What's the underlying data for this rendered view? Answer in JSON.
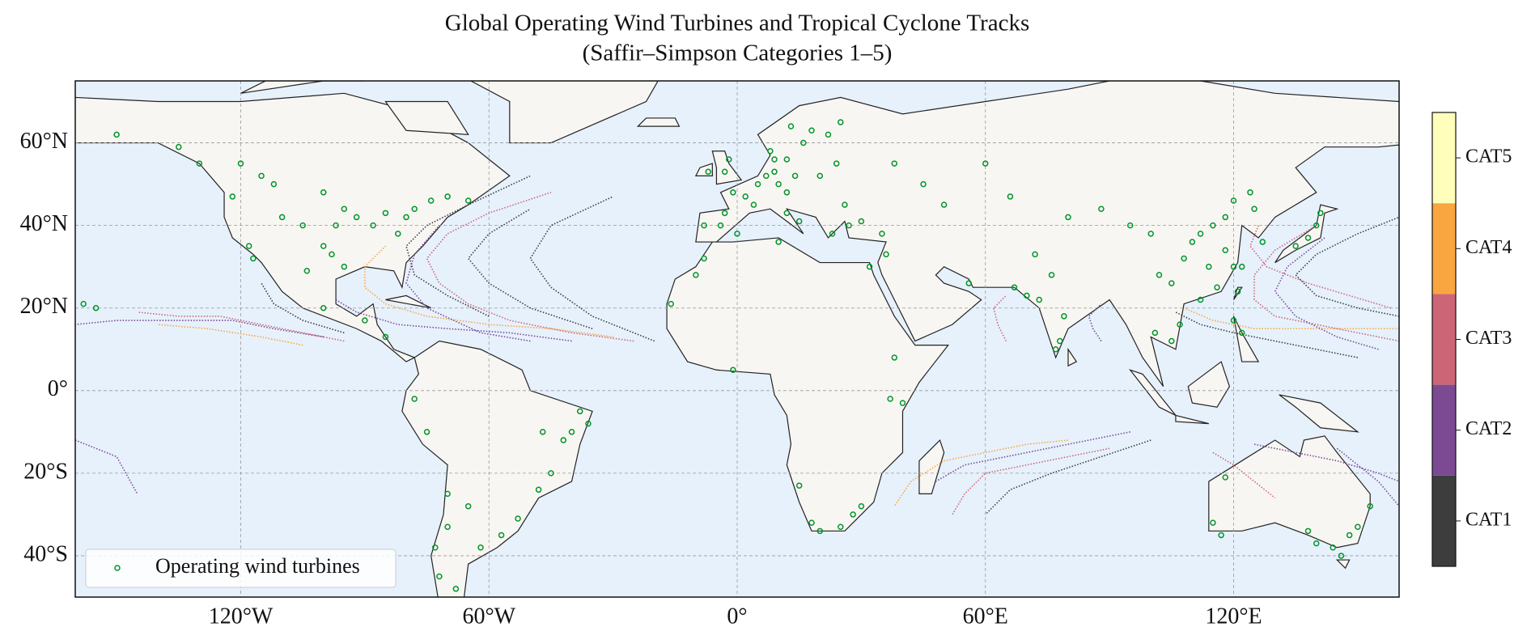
{
  "chart_data": {
    "type": "map",
    "title": "Global Operating Wind Turbines and Tropical Cyclone Tracks",
    "subtitle": "(Saffir–Simpson Categories 1–5)",
    "xlim": [
      -160,
      160
    ],
    "ylim": [
      -50,
      75
    ],
    "xticks": [
      {
        "value": -120,
        "label": "120°W"
      },
      {
        "value": -60,
        "label": "60°W"
      },
      {
        "value": 0,
        "label": "0°"
      },
      {
        "value": 60,
        "label": "60°E"
      },
      {
        "value": 120,
        "label": "120°E"
      }
    ],
    "yticks": [
      {
        "value": -40,
        "label": "40°S"
      },
      {
        "value": -20,
        "label": "20°S"
      },
      {
        "value": 0,
        "label": "0°"
      },
      {
        "value": 20,
        "label": "20°N"
      },
      {
        "value": 40,
        "label": "40°N"
      },
      {
        "value": 60,
        "label": "60°N"
      }
    ],
    "grid": true,
    "legend": "lower left",
    "colorbar": {
      "categories": [
        "CAT1",
        "CAT2",
        "CAT3",
        "CAT4",
        "CAT5"
      ],
      "colors": [
        "#3d3d3d",
        "#7b4a92",
        "#cc6677",
        "#f9a640",
        "#ffffbb"
      ]
    },
    "turbines": {
      "name": "Operating wind turbines",
      "color": "#00952b",
      "x": [
        -8,
        -4,
        -3,
        0,
        2,
        4,
        -1,
        5,
        7,
        9,
        10,
        12,
        14,
        9,
        12,
        -3,
        -2,
        -7,
        16,
        18,
        22,
        25,
        13,
        8,
        20,
        24,
        26,
        23,
        15,
        12,
        27,
        35,
        30,
        38,
        45,
        60,
        50,
        112,
        115,
        118,
        120,
        125,
        124,
        110,
        108,
        114,
        118,
        120,
        116,
        112,
        105,
        102,
        100,
        95,
        88,
        80,
        127,
        135,
        138,
        140,
        141,
        121,
        122,
        78,
        77,
        73,
        70,
        79,
        72,
        67,
        76,
        105,
        107,
        120,
        122,
        101,
        56,
        66,
        -122,
        -118,
        -110,
        -105,
        -100,
        -98,
        -97,
        -95,
        -92,
        -88,
        -85,
        -80,
        -78,
        -74,
        -70,
        -82,
        -100,
        -112,
        -115,
        -120,
        -65,
        -104,
        -100,
        -90,
        -85,
        -117,
        -130,
        -135,
        -150,
        -95,
        -38,
        -36,
        -40,
        -42,
        -48,
        -53,
        -57,
        -62,
        -65,
        -70,
        -73,
        -72,
        -45,
        -75,
        -68,
        -47,
        -70,
        -78,
        -8,
        -10,
        -16,
        10,
        32,
        38,
        40,
        37,
        18,
        20,
        25,
        28,
        30,
        -1,
        15,
        115,
        117,
        138,
        140,
        144,
        146,
        150,
        148,
        153,
        118,
        -158,
        -155,
        36
      ],
      "y": [
        40,
        40,
        43,
        38,
        47,
        45,
        48,
        50,
        52,
        53,
        50,
        48,
        52,
        56,
        56,
        53,
        56,
        53,
        60,
        63,
        62,
        65,
        64,
        58,
        52,
        55,
        45,
        38,
        41,
        43,
        40,
        38,
        41,
        55,
        50,
        55,
        45,
        38,
        40,
        42,
        46,
        44,
        48,
        36,
        32,
        30,
        34,
        30,
        25,
        22,
        26,
        28,
        38,
        40,
        44,
        42,
        36,
        35,
        37,
        40,
        43,
        24,
        30,
        12,
        10,
        22,
        23,
        18,
        33,
        25,
        28,
        12,
        16,
        17,
        14,
        14,
        26,
        47,
        47,
        35,
        42,
        40,
        35,
        33,
        40,
        44,
        42,
        40,
        43,
        42,
        44,
        46,
        47,
        38,
        48,
        50,
        52,
        55,
        46,
        29,
        20,
        17,
        13,
        32,
        55,
        59,
        62,
        30,
        -5,
        -8,
        -10,
        -12,
        -24,
        -31,
        -35,
        -38,
        -28,
        -33,
        -38,
        -45,
        -20,
        -10,
        -48,
        -10,
        -25,
        -2,
        32,
        28,
        21,
        36,
        30,
        8,
        -3,
        -2,
        -32,
        -34,
        -33,
        -30,
        -28,
        5,
        -23,
        -32,
        -35,
        -34,
        -37,
        -38,
        -40,
        -33,
        -35,
        -28,
        -21,
        21,
        20,
        33
      ]
    },
    "tracks": [
      {
        "category": 2,
        "x": [
          -25,
          -40,
          -55,
          -65,
          -72,
          -75,
          -70,
          -60,
          -45
        ],
        "y": [
          12,
          14,
          17,
          21,
          26,
          32,
          38,
          43,
          48
        ]
      },
      {
        "category": 3,
        "x": [
          -30,
          -45,
          -60,
          -75,
          -85,
          -90,
          -90,
          -85
        ],
        "y": [
          13,
          15,
          16,
          18,
          21,
          25,
          30,
          35
        ]
      },
      {
        "category": 0,
        "x": [
          -35,
          -50,
          -60,
          -65,
          -60,
          -50
        ],
        "y": [
          15,
          20,
          26,
          32,
          38,
          44
        ]
      },
      {
        "category": 1,
        "x": [
          -40,
          -55,
          -70,
          -82,
          -92,
          -97
        ],
        "y": [
          12,
          14,
          15,
          16,
          19,
          22
        ]
      },
      {
        "category": 0,
        "x": [
          -20,
          -35,
          -45,
          -50,
          -45,
          -30
        ],
        "y": [
          12,
          18,
          25,
          32,
          40,
          47
        ]
      },
      {
        "category": 1,
        "x": [
          -50,
          -62,
          -75,
          -80,
          -78,
          -72
        ],
        "y": [
          12,
          14,
          20,
          26,
          33,
          40
        ]
      },
      {
        "category": 0,
        "x": [
          -60,
          -70,
          -78,
          -80,
          -75,
          -65,
          -50
        ],
        "y": [
          18,
          23,
          28,
          35,
          40,
          45,
          52
        ]
      },
      {
        "category": 2,
        "x": [
          -95,
          -105,
          -115,
          -125,
          -135,
          -145
        ],
        "y": [
          12,
          14,
          16,
          18,
          18,
          19
        ]
      },
      {
        "category": 1,
        "x": [
          -100,
          -112,
          -122,
          -135,
          -150,
          -160
        ],
        "y": [
          13,
          15,
          17,
          17,
          17,
          16
        ]
      },
      {
        "category": 3,
        "x": [
          -105,
          -115,
          -128,
          -140
        ],
        "y": [
          11,
          13,
          15,
          16
        ]
      },
      {
        "category": 0,
        "x": [
          -95,
          -105,
          -112,
          -115
        ],
        "y": [
          14,
          17,
          21,
          26
        ]
      },
      {
        "category": 2,
        "x": [
          160,
          150,
          140,
          130,
          125,
          125,
          130,
          140
        ],
        "y": [
          12,
          14,
          16,
          18,
          22,
          28,
          34,
          40
        ]
      },
      {
        "category": 3,
        "x": [
          160,
          148,
          135,
          125,
          115,
          108
        ],
        "y": [
          15,
          15,
          15,
          15,
          17,
          20
        ]
      },
      {
        "category": 1,
        "x": [
          155,
          145,
          135,
          130,
          133,
          142
        ],
        "y": [
          10,
          13,
          18,
          24,
          30,
          37
        ]
      },
      {
        "category": 0,
        "x": [
          160,
          150,
          140,
          135,
          140,
          150,
          160
        ],
        "y": [
          18,
          20,
          23,
          28,
          33,
          38,
          42
        ]
      },
      {
        "category": 0,
        "x": [
          150,
          140,
          130,
          120,
          112,
          106
        ],
        "y": [
          8,
          10,
          12,
          14,
          16,
          19
        ]
      },
      {
        "category": 2,
        "x": [
          158,
          148,
          138,
          128,
          124,
          126
        ],
        "y": [
          20,
          23,
          26,
          30,
          35,
          40
        ]
      },
      {
        "category": 1,
        "x": [
          95,
          85,
          75,
          65,
          55,
          48
        ],
        "y": [
          -10,
          -12,
          -14,
          -16,
          -18,
          -22
        ]
      },
      {
        "category": 2,
        "x": [
          90,
          80,
          70,
          60,
          55,
          52
        ],
        "y": [
          -14,
          -16,
          -18,
          -20,
          -25,
          -30
        ]
      },
      {
        "category": 0,
        "x": [
          100,
          88,
          76,
          66,
          60
        ],
        "y": [
          -12,
          -16,
          -20,
          -24,
          -30
        ]
      },
      {
        "category": 3,
        "x": [
          80,
          70,
          60,
          50,
          42,
          38
        ],
        "y": [
          -12,
          -13,
          -15,
          -17,
          -22,
          -28
        ]
      },
      {
        "category": 2,
        "x": [
          115,
          120,
          125,
          130
        ],
        "y": [
          -15,
          -18,
          -22,
          -26
        ]
      },
      {
        "category": 1,
        "x": [
          125,
          135,
          145,
          155,
          160
        ],
        "y": [
          -13,
          -15,
          -17,
          -20,
          -22
        ]
      },
      {
        "category": 1,
        "x": [
          145,
          150,
          155,
          160
        ],
        "y": [
          -14,
          -18,
          -22,
          -28
        ]
      },
      {
        "category": 1,
        "x": [
          88,
          86,
          85,
          88
        ],
        "y": [
          12,
          15,
          18,
          21
        ]
      },
      {
        "category": 2,
        "x": [
          65,
          63,
          62,
          65
        ],
        "y": [
          12,
          16,
          20,
          23
        ]
      },
      {
        "category": 1,
        "x": [
          -160,
          -150,
          -145
        ],
        "y": [
          -12,
          -16,
          -25
        ]
      }
    ]
  }
}
